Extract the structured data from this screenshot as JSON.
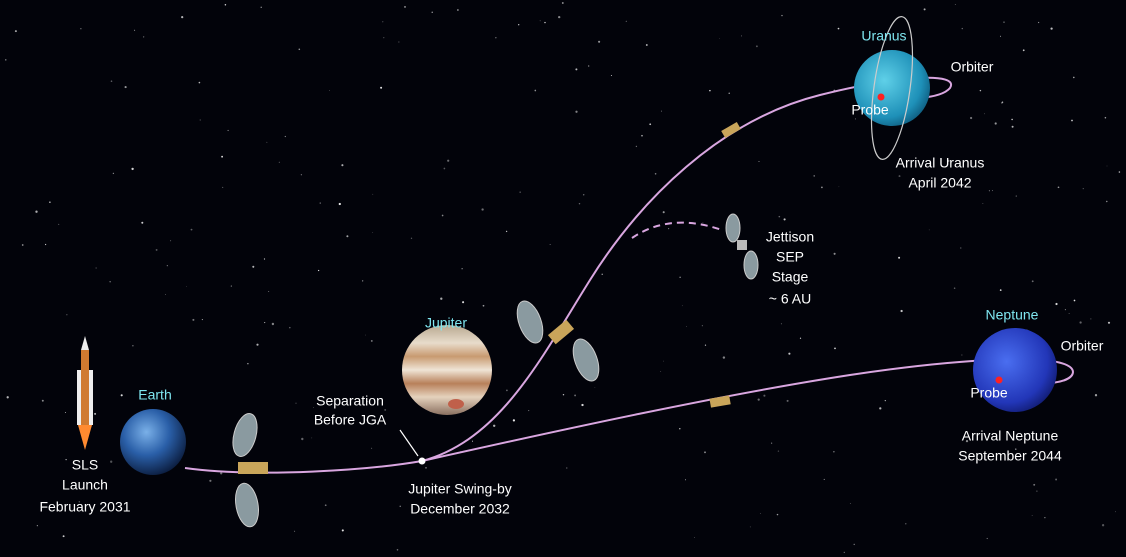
{
  "planets": {
    "earth": "Earth",
    "jupiter": "Jupiter",
    "uranus": "Uranus",
    "neptune": "Neptune"
  },
  "launch": [
    "SLS",
    "Launch",
    "February 2031"
  ],
  "separation": [
    "Separation",
    "Before JGA"
  ],
  "swingby": [
    "Jupiter Swing-by",
    "December 2032"
  ],
  "jettison": [
    "Jettison",
    "SEP",
    "Stage",
    "~ 6 AU"
  ],
  "uranus_arrival": [
    "Arrival Uranus",
    "April 2042"
  ],
  "neptune_arrival": [
    "Arrival Neptune",
    "September 2044"
  ],
  "uranus_orbiter": "Orbiter",
  "uranus_probe": "Probe",
  "neptune_orbiter": "Orbiter",
  "neptune_probe": "Probe"
}
